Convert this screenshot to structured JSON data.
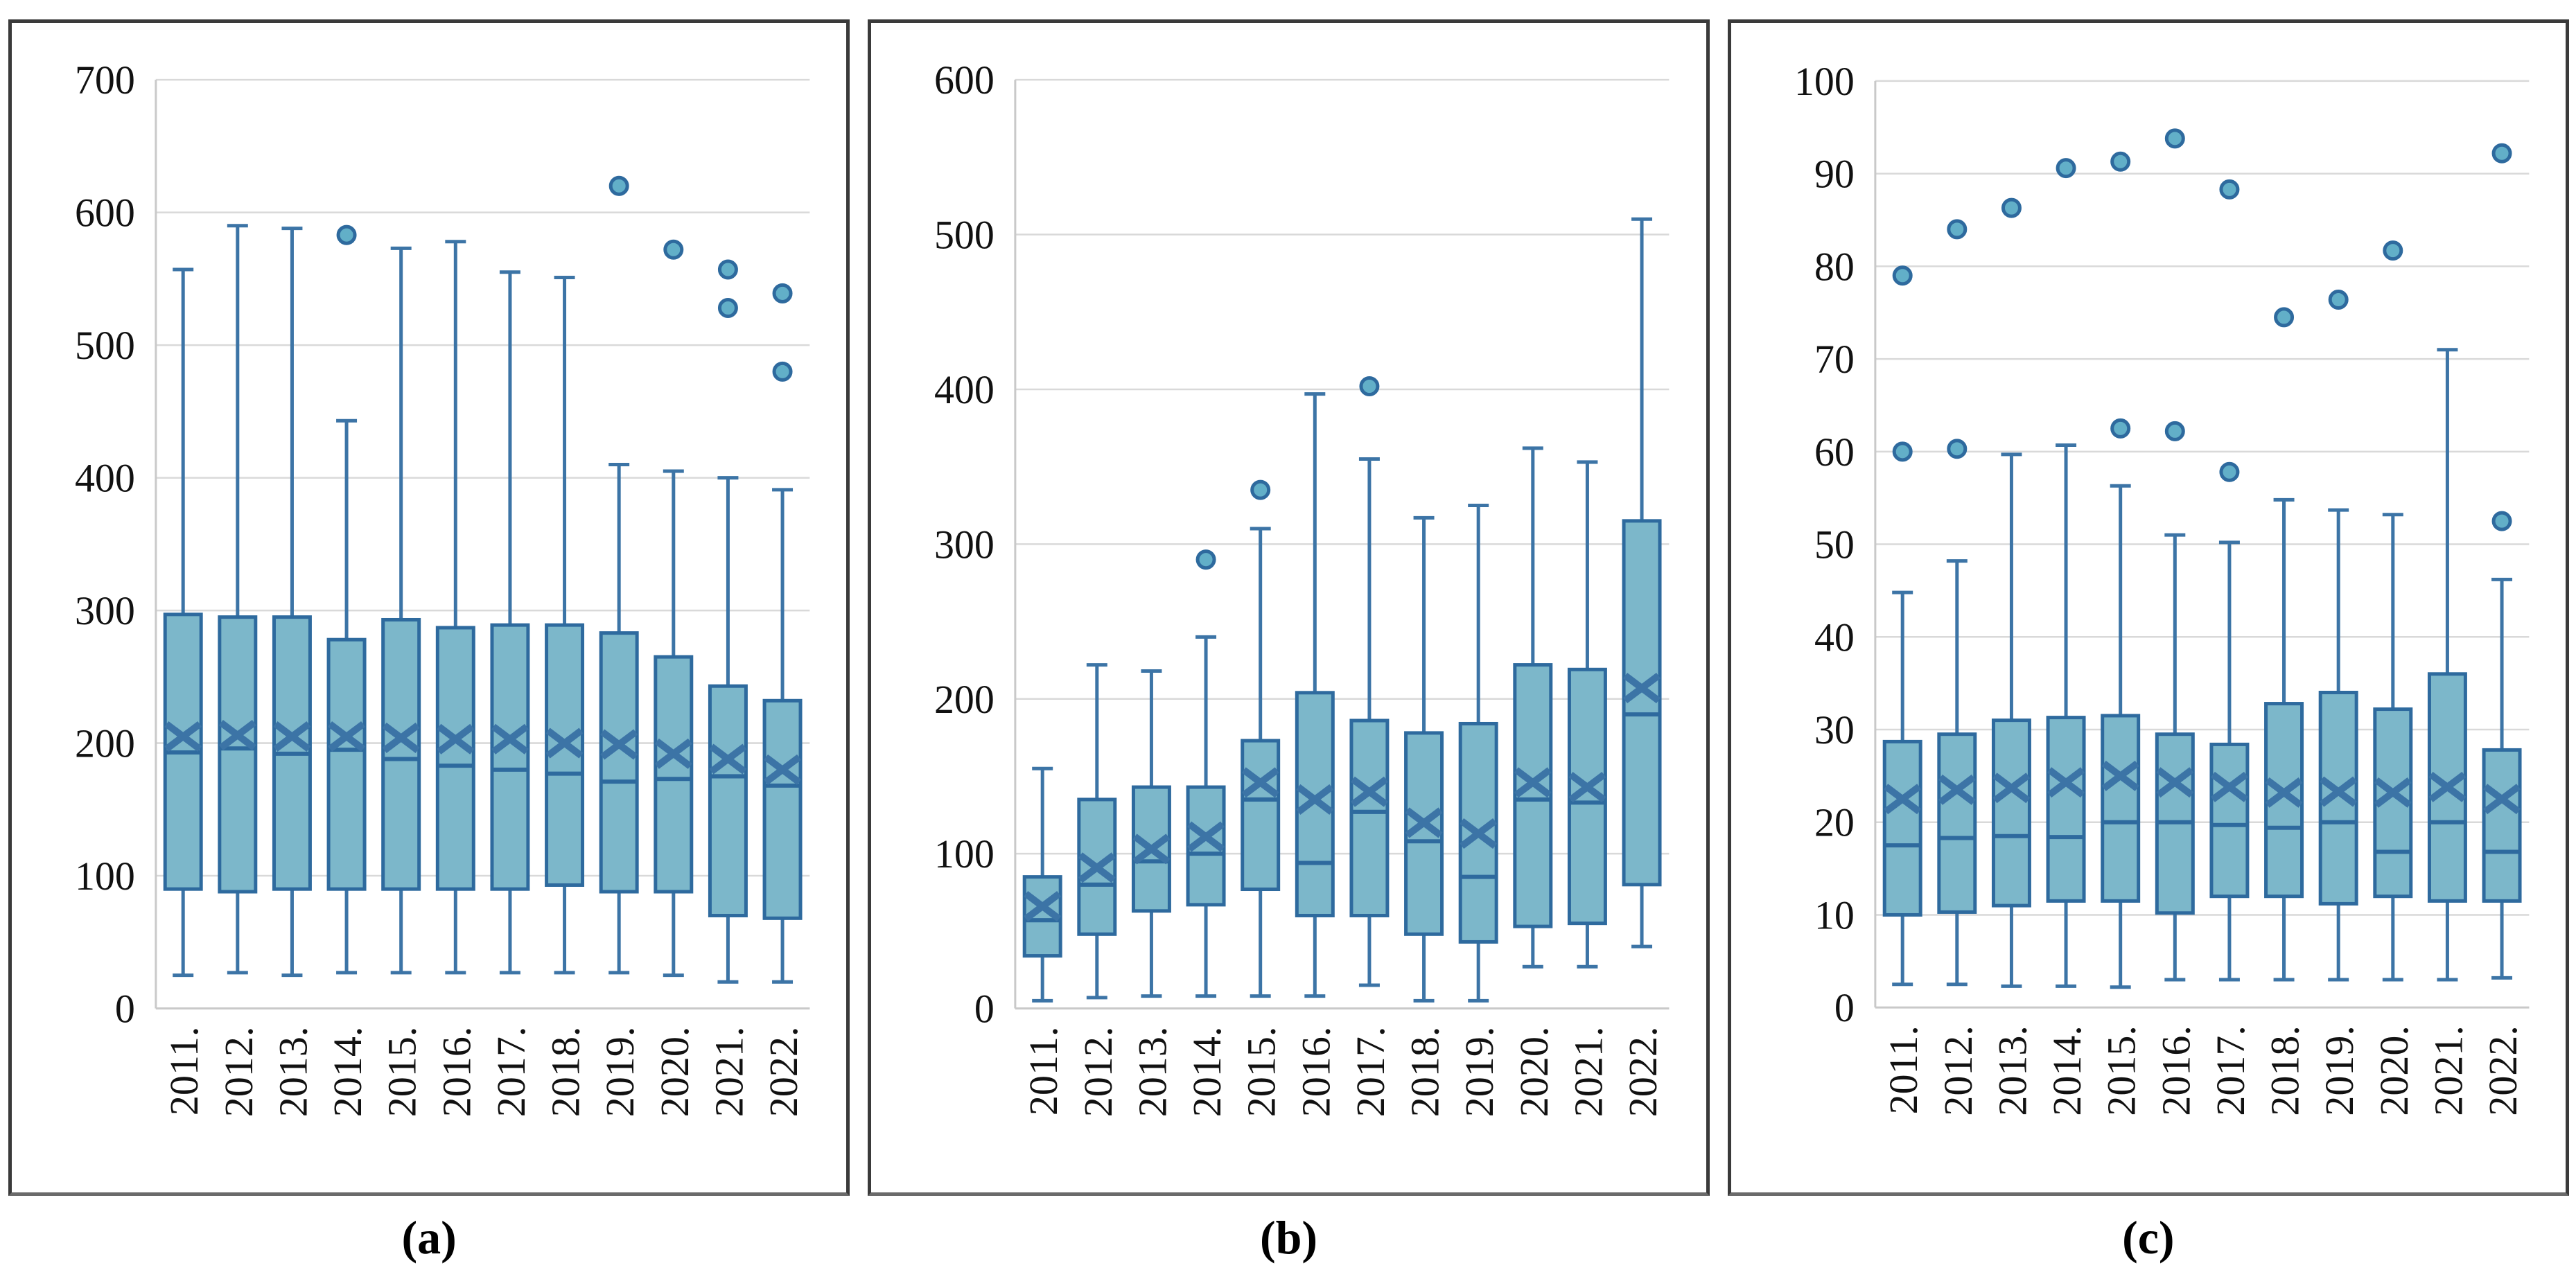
{
  "style": {
    "box_fill": "#7cb7ca",
    "box_border": "#2e6a9e",
    "line": "#3c74a6",
    "outlier_fill": "#62afc8",
    "gridline": "#d9d9d9",
    "axis_line": "#c9c9c9",
    "tick_text": "#111111"
  },
  "chart_data": [
    {
      "type": "box",
      "panel_label": "(a)",
      "ylim": [
        0,
        700
      ],
      "y_ticks": [
        0,
        100,
        200,
        300,
        400,
        500,
        600,
        700
      ],
      "grid": "horizontal",
      "legend": "none",
      "categories": [
        "2011.",
        "2012.",
        "2013.",
        "2014.",
        "2015.",
        "2016.",
        "2017.",
        "2018.",
        "2019.",
        "2020.",
        "2021.",
        "2022."
      ],
      "series": [
        {
          "year": "2011.",
          "low": 25,
          "q1": 90,
          "median": 193,
          "mean": 205,
          "q3": 297,
          "high": 557,
          "outliers": []
        },
        {
          "year": "2012.",
          "low": 27,
          "q1": 88,
          "median": 196,
          "mean": 206,
          "q3": 295,
          "high": 590,
          "outliers": []
        },
        {
          "year": "2013.",
          "low": 25,
          "q1": 90,
          "median": 192,
          "mean": 205,
          "q3": 295,
          "high": 588,
          "outliers": []
        },
        {
          "year": "2014.",
          "low": 27,
          "q1": 90,
          "median": 195,
          "mean": 205,
          "q3": 278,
          "high": 443,
          "outliers": [
            583
          ]
        },
        {
          "year": "2015.",
          "low": 27,
          "q1": 90,
          "median": 188,
          "mean": 204,
          "q3": 293,
          "high": 573,
          "outliers": []
        },
        {
          "year": "2016.",
          "low": 27,
          "q1": 90,
          "median": 183,
          "mean": 203,
          "q3": 287,
          "high": 578,
          "outliers": []
        },
        {
          "year": "2017.",
          "low": 27,
          "q1": 90,
          "median": 180,
          "mean": 203,
          "q3": 289,
          "high": 555,
          "outliers": []
        },
        {
          "year": "2018.",
          "low": 27,
          "q1": 93,
          "median": 177,
          "mean": 200,
          "q3": 289,
          "high": 551,
          "outliers": []
        },
        {
          "year": "2019.",
          "low": 27,
          "q1": 88,
          "median": 171,
          "mean": 199,
          "q3": 283,
          "high": 410,
          "outliers": [
            620
          ]
        },
        {
          "year": "2020.",
          "low": 25,
          "q1": 88,
          "median": 173,
          "mean": 192,
          "q3": 265,
          "high": 405,
          "outliers": [
            572
          ]
        },
        {
          "year": "2021.",
          "low": 20,
          "q1": 70,
          "median": 175,
          "mean": 188,
          "q3": 243,
          "high": 400,
          "outliers": [
            528,
            557
          ]
        },
        {
          "year": "2022.",
          "low": 20,
          "q1": 68,
          "median": 168,
          "mean": 180,
          "q3": 232,
          "high": 391,
          "outliers": [
            480,
            539
          ]
        }
      ]
    },
    {
      "type": "box",
      "panel_label": "(b)",
      "ylim": [
        0,
        600
      ],
      "y_ticks": [
        0,
        100,
        200,
        300,
        400,
        500,
        600
      ],
      "grid": "horizontal",
      "legend": "none",
      "categories": [
        "2011.",
        "2012.",
        "2013.",
        "2014.",
        "2015.",
        "2016.",
        "2017.",
        "2018.",
        "2019.",
        "2020.",
        "2021.",
        "2022."
      ],
      "series": [
        {
          "year": "2011.",
          "low": 5,
          "q1": 34,
          "median": 57,
          "mean": 66,
          "q3": 85,
          "high": 155,
          "outliers": []
        },
        {
          "year": "2012.",
          "low": 7,
          "q1": 48,
          "median": 80,
          "mean": 91,
          "q3": 135,
          "high": 222,
          "outliers": []
        },
        {
          "year": "2013.",
          "low": 8,
          "q1": 63,
          "median": 95,
          "mean": 103,
          "q3": 143,
          "high": 218,
          "outliers": []
        },
        {
          "year": "2014.",
          "low": 8,
          "q1": 67,
          "median": 100,
          "mean": 111,
          "q3": 143,
          "high": 240,
          "outliers": [
            290
          ]
        },
        {
          "year": "2015.",
          "low": 8,
          "q1": 77,
          "median": 135,
          "mean": 146,
          "q3": 173,
          "high": 310,
          "outliers": [
            335
          ]
        },
        {
          "year": "2016.",
          "low": 8,
          "q1": 60,
          "median": 94,
          "mean": 135,
          "q3": 204,
          "high": 397,
          "outliers": []
        },
        {
          "year": "2017.",
          "low": 15,
          "q1": 60,
          "median": 127,
          "mean": 140,
          "q3": 186,
          "high": 355,
          "outliers": [
            402
          ]
        },
        {
          "year": "2018.",
          "low": 5,
          "q1": 48,
          "median": 108,
          "mean": 120,
          "q3": 178,
          "high": 317,
          "outliers": []
        },
        {
          "year": "2019.",
          "low": 5,
          "q1": 43,
          "median": 85,
          "mean": 113,
          "q3": 184,
          "high": 325,
          "outliers": []
        },
        {
          "year": "2020.",
          "low": 27,
          "q1": 53,
          "median": 135,
          "mean": 146,
          "q3": 222,
          "high": 362,
          "outliers": []
        },
        {
          "year": "2021.",
          "low": 27,
          "q1": 55,
          "median": 133,
          "mean": 143,
          "q3": 219,
          "high": 353,
          "outliers": []
        },
        {
          "year": "2022.",
          "low": 40,
          "q1": 80,
          "median": 190,
          "mean": 207,
          "q3": 315,
          "high": 510,
          "outliers": []
        }
      ]
    },
    {
      "type": "box",
      "panel_label": "(c)",
      "ylim": [
        0,
        100
      ],
      "y_ticks": [
        0,
        10,
        20,
        30,
        40,
        50,
        60,
        70,
        80,
        90,
        100
      ],
      "grid": "horizontal",
      "legend": "none",
      "categories": [
        "2011.",
        "2012.",
        "2013.",
        "2014.",
        "2015.",
        "2016.",
        "2017.",
        "2018.",
        "2019.",
        "2020.",
        "2021.",
        "2022."
      ],
      "series": [
        {
          "year": "2011.",
          "low": 2.5,
          "q1": 10,
          "median": 17.5,
          "mean": 22.5,
          "q3": 28.7,
          "high": 44.8,
          "outliers": [
            60,
            79
          ]
        },
        {
          "year": "2012.",
          "low": 2.5,
          "q1": 10.3,
          "median": 18.3,
          "mean": 23.5,
          "q3": 29.5,
          "high": 48.2,
          "outliers": [
            60.3,
            84
          ]
        },
        {
          "year": "2013.",
          "low": 2.3,
          "q1": 11,
          "median": 18.5,
          "mean": 23.7,
          "q3": 31,
          "high": 59.7,
          "outliers": [
            86.3
          ]
        },
        {
          "year": "2014.",
          "low": 2.3,
          "q1": 11.5,
          "median": 18.4,
          "mean": 24.3,
          "q3": 31.3,
          "high": 60.7,
          "outliers": [
            90.6
          ]
        },
        {
          "year": "2015.",
          "low": 2.2,
          "q1": 11.5,
          "median": 20,
          "mean": 25,
          "q3": 31.5,
          "high": 56.3,
          "outliers": [
            62.5,
            91.3
          ]
        },
        {
          "year": "2016.",
          "low": 3,
          "q1": 10.2,
          "median": 20,
          "mean": 24.3,
          "q3": 29.5,
          "high": 51,
          "outliers": [
            62.2,
            93.8
          ]
        },
        {
          "year": "2017.",
          "low": 3,
          "q1": 12,
          "median": 19.7,
          "mean": 23.8,
          "q3": 28.4,
          "high": 50.2,
          "outliers": [
            57.8,
            88.3
          ]
        },
        {
          "year": "2018.",
          "low": 3,
          "q1": 12,
          "median": 19.4,
          "mean": 23.2,
          "q3": 32.8,
          "high": 54.8,
          "outliers": [
            74.5
          ]
        },
        {
          "year": "2019.",
          "low": 3,
          "q1": 11.2,
          "median": 20,
          "mean": 23.3,
          "q3": 34,
          "high": 53.7,
          "outliers": [
            76.4
          ]
        },
        {
          "year": "2020.",
          "low": 3,
          "q1": 12,
          "median": 16.8,
          "mean": 23.2,
          "q3": 32.2,
          "high": 53.2,
          "outliers": [
            81.7
          ]
        },
        {
          "year": "2021.",
          "low": 3,
          "q1": 11.5,
          "median": 20,
          "mean": 23.8,
          "q3": 36,
          "high": 71,
          "outliers": []
        },
        {
          "year": "2022.",
          "low": 3.2,
          "q1": 11.5,
          "median": 16.8,
          "mean": 22.5,
          "q3": 27.8,
          "high": 46.2,
          "outliers": [
            52.5,
            92.2
          ]
        }
      ]
    }
  ]
}
